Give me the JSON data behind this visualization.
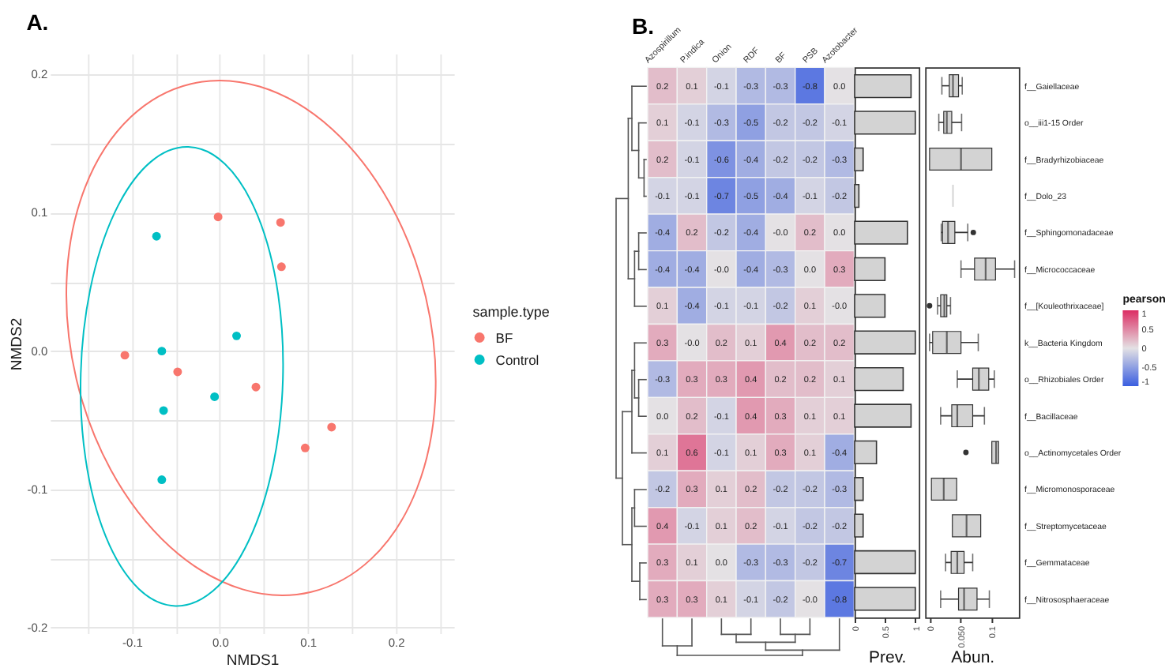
{
  "chart_data": [
    {
      "type": "scatter",
      "title": "A.",
      "xlabel": "NMDS1",
      "ylabel": "NMDS2",
      "legend_title": "sample.type",
      "legend": "right",
      "grid": true,
      "marker": "circle",
      "xlim": [
        -0.193,
        0.266
      ],
      "ylim": [
        -0.204,
        0.215
      ],
      "xticks": [
        {
          "value": -0.15,
          "label": null
        },
        -0.1,
        {
          "value": -0.05,
          "label": null
        },
        {
          "value": 0,
          "label": "0.0"
        },
        {
          "value": 0.05,
          "label": null
        },
        0.1,
        {
          "value": 0.15,
          "label": null
        },
        0.2,
        {
          "value": 0.25,
          "label": null
        }
      ],
      "yticks": [
        -0.2,
        {
          "value": -0.15,
          "label": null
        },
        -0.1,
        {
          "value": -0.05,
          "label": null
        },
        {
          "value": 0,
          "label": "0.0"
        },
        {
          "value": 0.05,
          "label": null
        },
        0.1,
        {
          "value": 0.15,
          "label": null
        },
        0.2
      ],
      "series": [
        {
          "name": "BF",
          "color": "#f8766d",
          "x": [
            -0.108,
            -0.048,
            -0.002,
            0.069,
            0.07,
            0.041,
            0.097,
            0.127
          ],
          "values": [
            -0.003,
            -0.015,
            0.097,
            0.093,
            0.061,
            -0.026,
            -0.07,
            -0.055
          ]
        },
        {
          "name": "Control",
          "color": "#00bfc4",
          "x": [
            -0.072,
            -0.066,
            -0.064,
            -0.066,
            -0.006,
            0.019
          ],
          "values": [
            0.083,
            0.0,
            -0.043,
            -0.093,
            -0.033,
            0.011
          ]
        }
      ]
    },
    {
      "type": "heatmap",
      "title": "B.",
      "tick_labels": "x",
      "clabel": "pearson",
      "clim": [
        -1,
        1
      ],
      "cticks": [
        -1,
        -0.5,
        0,
        0.5,
        1
      ],
      "categories": [
        "Azospirillum",
        "P.indica",
        "Onion",
        "RDF",
        "BF",
        "PSB",
        "Azotobacter"
      ],
      "y_categories": [
        null,
        null,
        null,
        null,
        null,
        null,
        null,
        null,
        null,
        null,
        null,
        null,
        null,
        null,
        null
      ],
      "cells": [
        [
          0.2,
          0.1,
          -0.1,
          -0.3,
          -0.3,
          -0.8,
          0.0
        ],
        [
          0.1,
          -0.1,
          -0.3,
          -0.5,
          -0.2,
          -0.2,
          -0.1
        ],
        [
          0.2,
          -0.1,
          -0.6,
          -0.4,
          -0.2,
          -0.2,
          -0.3
        ],
        [
          -0.1,
          -0.1,
          -0.7,
          -0.5,
          -0.4,
          -0.1,
          -0.2
        ],
        [
          -0.4,
          0.2,
          -0.2,
          -0.4,
          0,
          0.2,
          0.0
        ],
        [
          -0.4,
          -0.4,
          0,
          -0.4,
          -0.3,
          0.0,
          0.3
        ],
        [
          0.1,
          -0.4,
          -0.1,
          -0.1,
          -0.2,
          0.1,
          0
        ],
        [
          0.3,
          0,
          0.2,
          0.1,
          0.4,
          0.2,
          0.2
        ],
        [
          -0.3,
          0.3,
          0.3,
          0.4,
          0.2,
          0.2,
          0.1
        ],
        [
          0.0,
          0.2,
          -0.1,
          0.4,
          0.3,
          0.1,
          0.1
        ],
        [
          0.1,
          0.6,
          -0.1,
          0.1,
          0.3,
          0.1,
          -0.4
        ],
        [
          -0.2,
          0.3,
          0.1,
          0.2,
          -0.2,
          -0.2,
          -0.3
        ],
        [
          0.4,
          -0.1,
          0.1,
          0.2,
          -0.1,
          -0.2,
          -0.2
        ],
        [
          0.3,
          0.1,
          0.0,
          -0.3,
          -0.3,
          -0.2,
          -0.7
        ],
        [
          0.3,
          0.3,
          0.1,
          -0.1,
          -0.2,
          0,
          -0.8
        ]
      ],
      "cell_labels": [
        [
          "0.2",
          "0.1",
          "-0.1",
          "-0.3",
          "-0.3",
          "-0.8",
          "0.0"
        ],
        [
          "0.1",
          "-0.1",
          "-0.3",
          "-0.5",
          "-0.2",
          "-0.2",
          "-0.1"
        ],
        [
          "0.2",
          "-0.1",
          "-0.6",
          "-0.4",
          "-0.2",
          "-0.2",
          "-0.3"
        ],
        [
          "-0.1",
          "-0.1",
          "-0.7",
          "-0.5",
          "-0.4",
          "-0.1",
          "-0.2"
        ],
        [
          "-0.4",
          "0.2",
          "-0.2",
          "-0.4",
          "-0.0",
          "0.2",
          "0.0"
        ],
        [
          "-0.4",
          "-0.4",
          "-0.0",
          "-0.4",
          "-0.3",
          "0.0",
          "0.3"
        ],
        [
          "0.1",
          "-0.4",
          "-0.1",
          "-0.1",
          "-0.2",
          "0.1",
          "-0.0"
        ],
        [
          "0.3",
          "-0.0",
          "0.2",
          "0.1",
          "0.4",
          "0.2",
          "0.2"
        ],
        [
          "-0.3",
          "0.3",
          "0.3",
          "0.4",
          "0.2",
          "0.2",
          "0.1"
        ],
        [
          "0.0",
          "0.2",
          "-0.1",
          "0.4",
          "0.3",
          "0.1",
          "0.1"
        ],
        [
          "0.1",
          "0.6",
          "-0.1",
          "0.1",
          "0.3",
          "0.1",
          "-0.4"
        ],
        [
          "-0.2",
          "0.3",
          "0.1",
          "0.2",
          "-0.2",
          "-0.2",
          "-0.3"
        ],
        [
          "0.4",
          "-0.1",
          "0.1",
          "0.2",
          "-0.1",
          "-0.2",
          "-0.2"
        ],
        [
          "0.3",
          "0.1",
          "0.0",
          "-0.3",
          "-0.3",
          "-0.2",
          "-0.7"
        ],
        [
          "0.3",
          "0.3",
          "0.1",
          "-0.1",
          "-0.2",
          "-0.0",
          "-0.8"
        ]
      ]
    },
    {
      "type": "bar",
      "orientation": "horizontal",
      "tick_labels": "x",
      "xlabel": "Prev.",
      "color": "#d3d3d3",
      "xlim": [
        0,
        1.06
      ],
      "xticks": [
        0,
        0.5,
        1
      ],
      "categories": [
        null,
        null,
        null,
        null,
        null,
        null,
        null,
        null,
        null,
        null,
        null,
        null,
        null,
        null,
        null
      ],
      "values": [
        0.93,
        1.0,
        0.14,
        0.07,
        0.87,
        0.5,
        0.5,
        1.0,
        0.8,
        0.93,
        0.36,
        0.14,
        0.14,
        1.0,
        1.0
      ]
    },
    {
      "type": "box",
      "orientation": "horizontal",
      "xlabel": "Abun.",
      "color": "#d3d3d3",
      "xlim": [
        -0.007,
        0.145
      ],
      "xticks": [
        0,
        {
          "value": 0.05,
          "label": "0.050"
        },
        0.1
      ],
      "categories": [
        "f__Gaiellaceae",
        "o__iii1-15 Order",
        "f__Bradyrhizobiaceae",
        "f__Dolo_23",
        "f__Sphingomonadaceae",
        "f__Micrococcaceae",
        "f__[Kouleothrixaceae]",
        "k__Bacteria Kingdom",
        "o__Rhizobiales Order",
        "f__Bacillaceae",
        "o__Actinomycetales Order",
        "f__Micromonosporaceae",
        "f__Streptomycetaceae",
        "f__Gemmataceae",
        "f__Nitrososphaeraceae"
      ],
      "boxes": [
        {
          "low": 0.02,
          "q1": 0.032,
          "median": 0.038,
          "q3": 0.047,
          "high": 0.053
        },
        {
          "low": 0.015,
          "q1": 0.023,
          "median": 0.028,
          "q3": 0.036,
          "high": 0.052
        },
        {
          "low": 0.0,
          "q1": 0.0,
          "median": 0.051,
          "q3": 0.101,
          "high": 0.101
        },
        {
          "low": 0.038,
          "q1": 0.038,
          "median": 0.038,
          "q3": 0.038,
          "high": 0.038
        },
        {
          "low": 0.019,
          "q1": 0.021,
          "median": 0.03,
          "q3": 0.041,
          "high": 0.062,
          "outliers": [
            0.071
          ]
        },
        {
          "low": 0.051,
          "q1": 0.073,
          "median": 0.091,
          "q3": 0.107,
          "high": 0.138
        },
        {
          "low": 0.013,
          "q1": 0.018,
          "median": 0.024,
          "q3": 0.028,
          "high": 0.034,
          "outliers": [
            0.0
          ]
        },
        {
          "low": 0.0,
          "q1": 0.005,
          "median": 0.028,
          "q3": 0.051,
          "high": 0.079
        },
        {
          "low": 0.045,
          "q1": 0.07,
          "median": 0.08,
          "q3": 0.096,
          "high": 0.105
        },
        {
          "low": 0.018,
          "q1": 0.036,
          "median": 0.045,
          "q3": 0.07,
          "high": 0.089
        },
        {
          "low": 0.101,
          "q1": 0.101,
          "median": 0.108,
          "q3": 0.112,
          "high": 0.112,
          "outliers": [
            0.059
          ]
        },
        {
          "low": 0.003,
          "q1": 0.003,
          "median": 0.023,
          "q3": 0.044,
          "high": 0.044
        },
        {
          "low": 0.037,
          "q1": 0.037,
          "median": 0.06,
          "q3": 0.083,
          "high": 0.083
        },
        {
          "low": 0.026,
          "q1": 0.035,
          "median": 0.045,
          "q3": 0.056,
          "high": 0.07
        },
        {
          "low": 0.018,
          "q1": 0.047,
          "median": 0.056,
          "q3": 0.077,
          "high": 0.097
        }
      ]
    }
  ]
}
